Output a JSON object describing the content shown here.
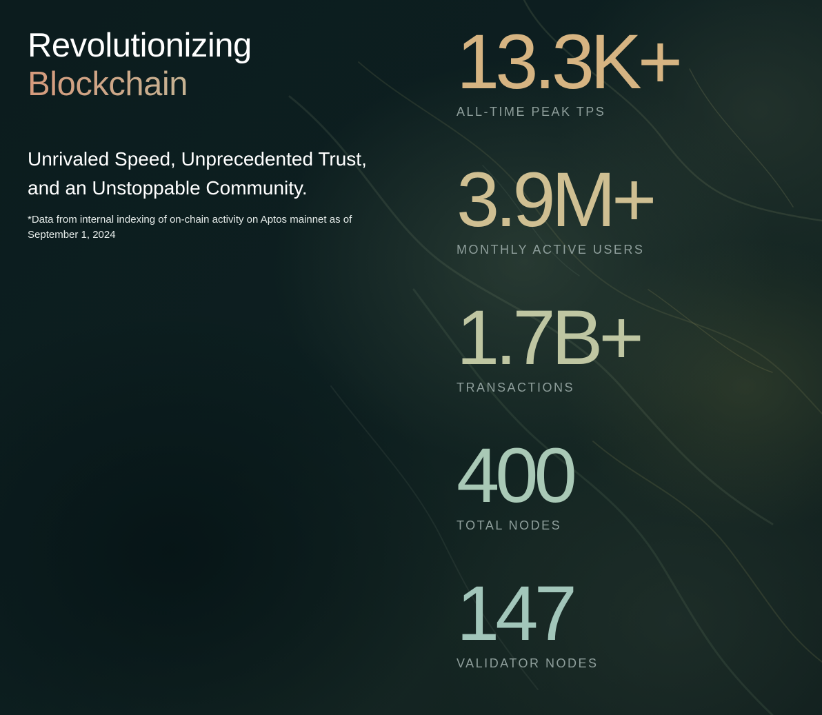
{
  "hero": {
    "title_line1": "Revolutionizing",
    "title_line2": "Blockchain",
    "subtitle": "Unrivaled Speed, Unprecedented Trust, and an Unstoppable Community.",
    "footnote": "*Data from internal indexing of on-chain activity on Aptos mainnet as of September 1, 2024"
  },
  "stats": [
    {
      "value": "13.3K+",
      "label": "ALL-TIME PEAK TPS",
      "color": "#d6b482"
    },
    {
      "value": "3.9M+",
      "label": "MONTHLY ACTIVE USERS",
      "color": "#cfbf92"
    },
    {
      "value": "1.7B+",
      "label": "TRANSACTIONS",
      "color": "#bfc6a2"
    },
    {
      "value": "400",
      "label": "TOTAL NODES",
      "color": "#a9c9b6"
    },
    {
      "value": "147",
      "label": "VALIDATOR NODES",
      "color": "#a2c6ba"
    }
  ],
  "colors": {
    "background": "#0a1a1c",
    "title_gradient_start": "#d69a7c",
    "title_gradient_end": "#a9d2c8",
    "label": "#8f9f9c"
  }
}
